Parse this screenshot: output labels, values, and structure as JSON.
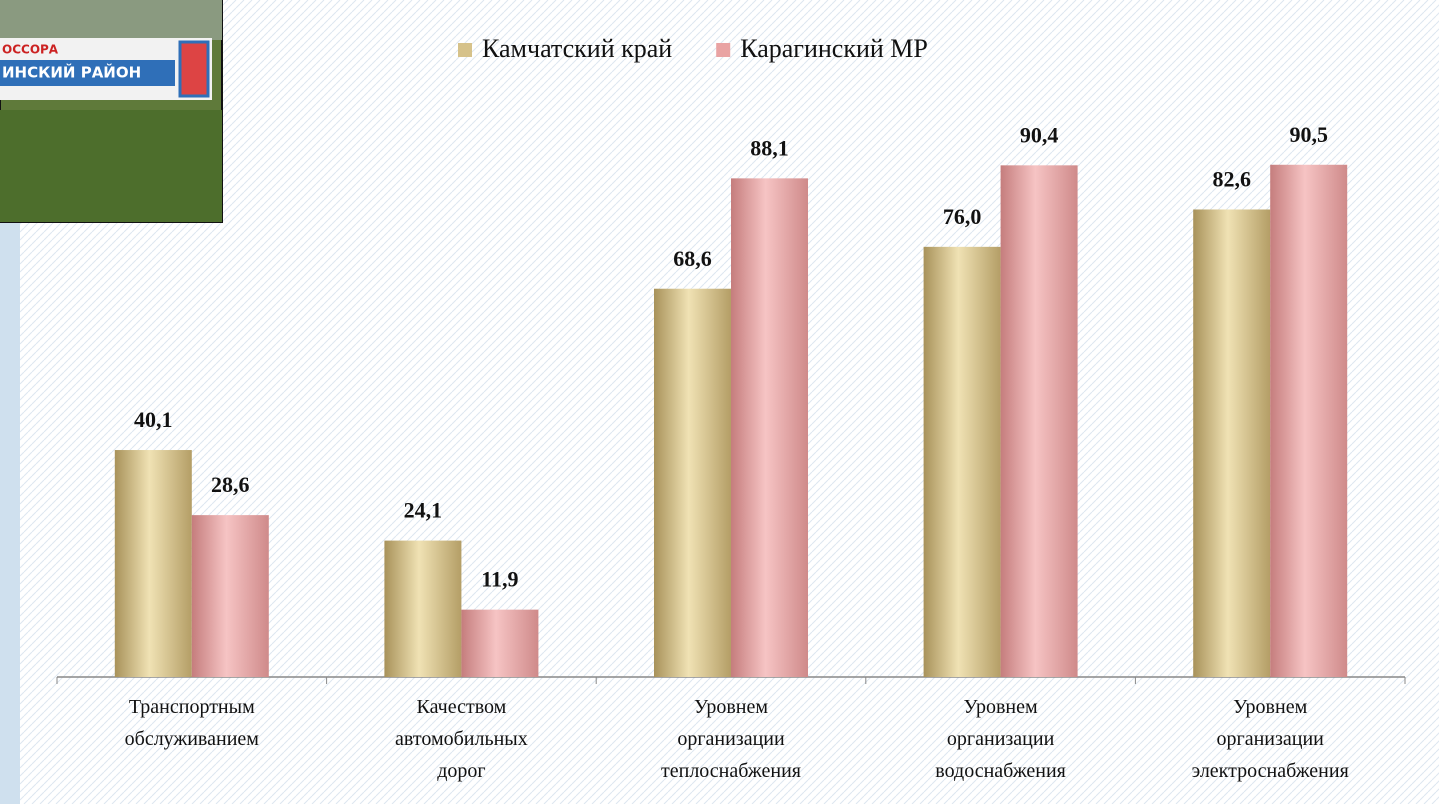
{
  "chart_data": {
    "type": "bar",
    "categories": [
      "Транспортным обслуживанием",
      "Качеством автомобильных дорог",
      "Уровнем организации теплоснабжения",
      "Уровнем организации водоснабжения",
      "Уровнем организации электроснабжения"
    ],
    "series": [
      {
        "name": "Камчатский край",
        "color": "#d6c28a",
        "values": [
          40.1,
          24.1,
          68.6,
          76.0,
          82.6
        ],
        "value_labels": [
          "40,1",
          "24,1",
          "68,6",
          "76,0",
          "82,6"
        ]
      },
      {
        "name": "Карагинский МР",
        "color": "#e9a3a3",
        "values": [
          28.6,
          11.9,
          88.1,
          90.4,
          90.5
        ],
        "value_labels": [
          "28,6",
          "11,9",
          "88,1",
          "90,4",
          "90,5"
        ]
      }
    ],
    "ylim": [
      0,
      100
    ],
    "legend": "top"
  },
  "photo": {
    "sign_lines": [
      "ОССОРА",
      "ИНСКИЙ РАЙОН"
    ]
  }
}
